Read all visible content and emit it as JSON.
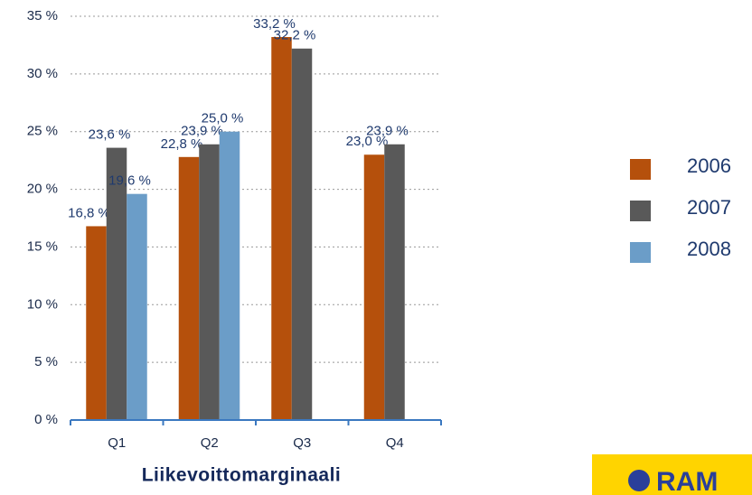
{
  "chart_data": {
    "type": "bar",
    "title": "Liikevoittomarginaali",
    "categories": [
      "Q1",
      "Q2",
      "Q3",
      "Q4"
    ],
    "series": [
      {
        "name": "2006",
        "color": "#b5500c",
        "values": [
          16.8,
          22.8,
          33.2,
          23.0
        ],
        "value_labels": [
          "16,8 %",
          "22,8 %",
          "33,2 %",
          "23,0 %"
        ]
      },
      {
        "name": "2007",
        "color": "#595959",
        "values": [
          23.6,
          23.9,
          32.2,
          23.9
        ],
        "value_labels": [
          "23,6 %",
          "23,9 %",
          "32,2 %",
          "23,9 %"
        ]
      },
      {
        "name": "2008",
        "color": "#6b9dc8",
        "values": [
          19.6,
          25.0,
          null,
          null
        ],
        "value_labels": [
          "19,6 %",
          "25,0 %",
          null,
          null
        ]
      }
    ],
    "ylim": [
      0,
      35
    ],
    "yticks": [
      {
        "value": 0,
        "label": "0 %"
      },
      {
        "value": 5,
        "label": "5 %"
      },
      {
        "value": 10,
        "label": "10 %"
      },
      {
        "value": 15,
        "label": "15 %"
      },
      {
        "value": 20,
        "label": "20 %"
      },
      {
        "value": 25,
        "label": "25 %"
      },
      {
        "value": 30,
        "label": "30 %"
      },
      {
        "value": 35,
        "label": "35 %"
      }
    ],
    "grid": true,
    "legend": "right",
    "logo": "RAM"
  }
}
